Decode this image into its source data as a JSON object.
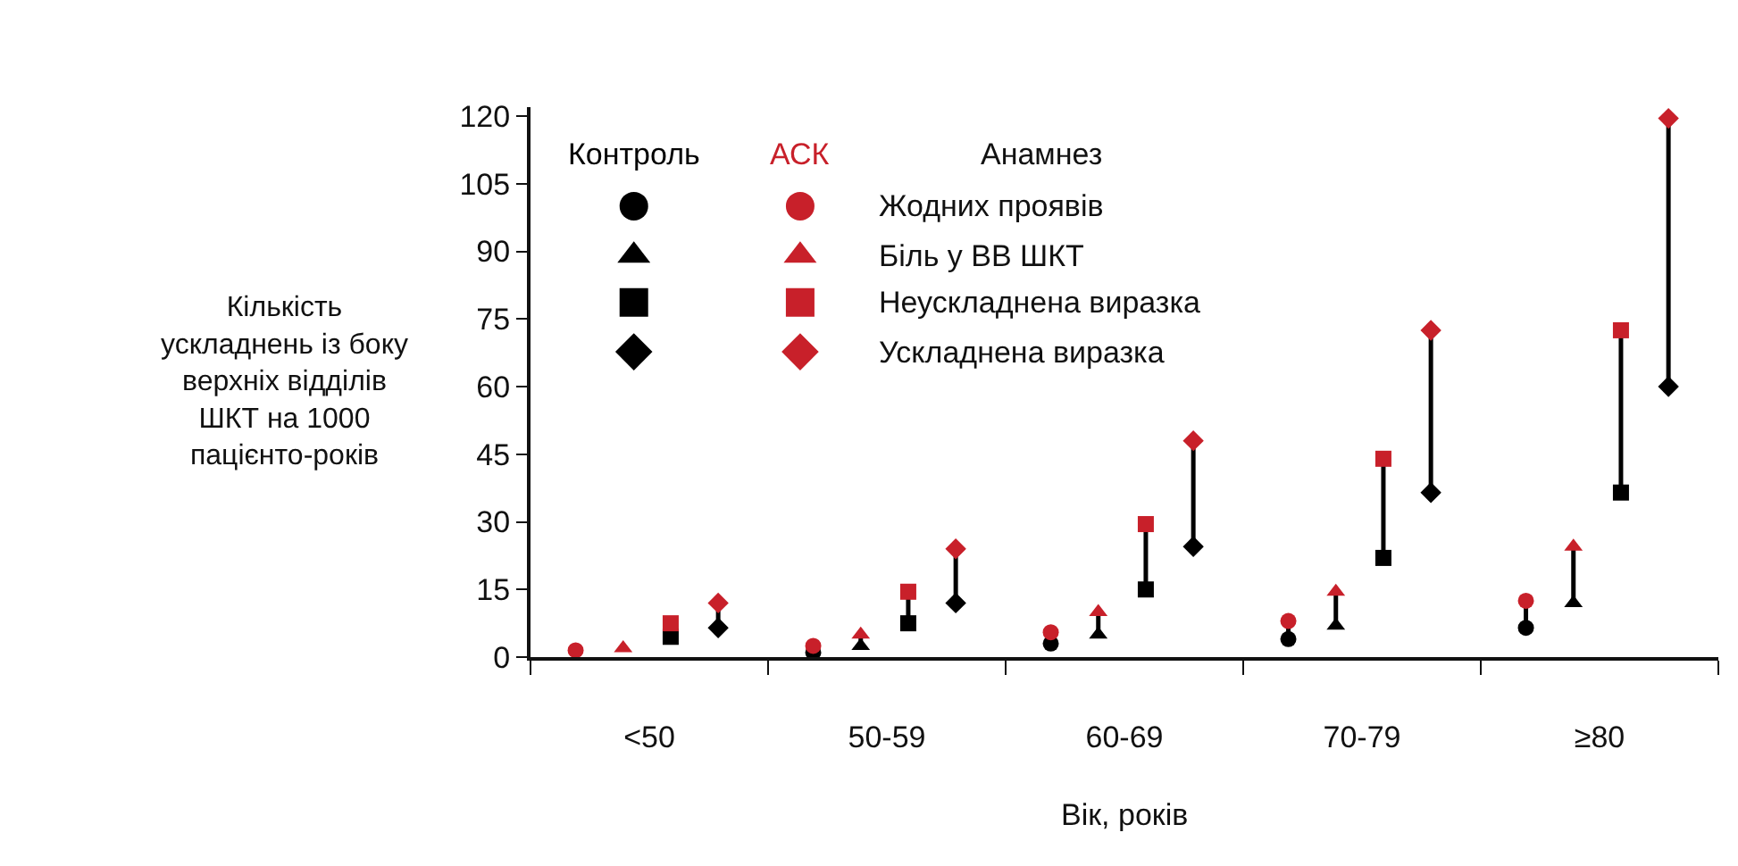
{
  "chart_data": {
    "type": "scatter",
    "xlabel": "Вік, років",
    "ylabel": "Кількість\nускладнень із боку\nверхніх відділів\nШКТ на 1000\nпацієнто-років",
    "categories": [
      "<50",
      "50-59",
      "60-69",
      "70-79",
      "≥80"
    ],
    "ylim": [
      0,
      122
    ],
    "yticks": [
      0,
      15,
      30,
      45,
      60,
      75,
      90,
      105,
      120
    ],
    "legend": "top left",
    "annotations": [
      "Контроль",
      "АСК",
      "Анамнез"
    ],
    "series": [
      {
        "color": "#000000",
        "marker": "circle",
        "values": [
          null,
          1,
          3,
          4,
          6.5
        ]
      },
      {
        "color": "#000000",
        "marker": "triangle",
        "values": [
          null,
          2.5,
          5,
          7,
          12
        ]
      },
      {
        "color": "#000000",
        "marker": "square",
        "values": [
          4.5,
          7.5,
          15,
          22,
          36.5
        ]
      },
      {
        "color": "#000000",
        "marker": "diamond",
        "values": [
          6.5,
          12,
          24.5,
          36.5,
          60
        ]
      },
      {
        "name": "Жодних проявів",
        "color": "#c8202a",
        "marker": "circle",
        "values": [
          1.5,
          2.5,
          5.5,
          8,
          12.5
        ]
      },
      {
        "name": "Біль у ВВ ШКТ",
        "color": "#c8202a",
        "marker": "triangle",
        "values": [
          2,
          5,
          10,
          14.5,
          24.5
        ]
      },
      {
        "name": "Неускладнена виразка",
        "color": "#c8202a",
        "marker": "square",
        "values": [
          7.5,
          14.5,
          29.5,
          44,
          72.5
        ]
      },
      {
        "name": "Ускладнена виразка",
        "color": "#c8202a",
        "marker": "diamond",
        "values": [
          12,
          24,
          48,
          72.5,
          119.5
        ]
      }
    ]
  }
}
